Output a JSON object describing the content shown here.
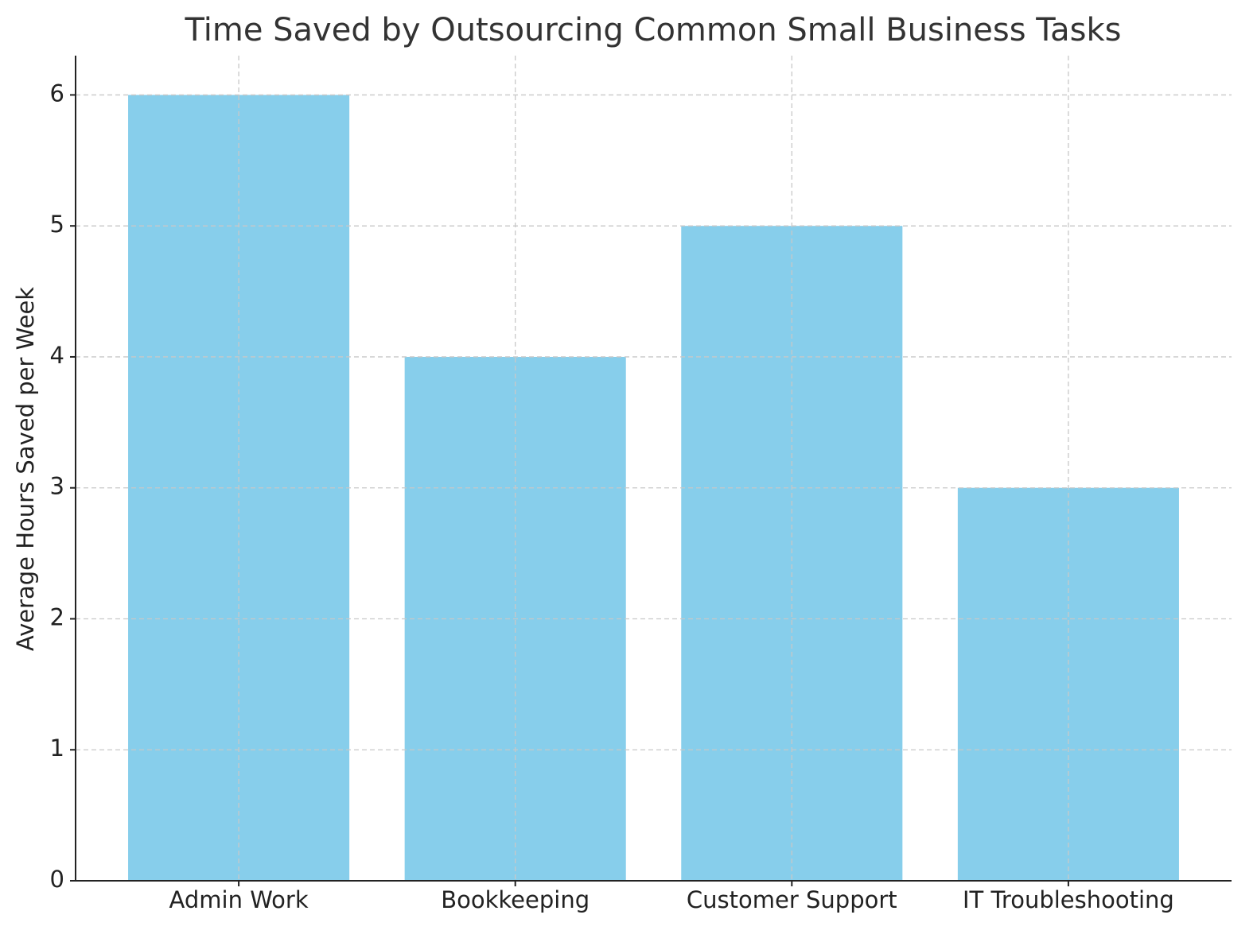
{
  "chart_data": {
    "type": "bar",
    "title": "Time Saved by Outsourcing Common Small Business Tasks",
    "y_label": "Average Hours Saved per Week",
    "categories": [
      "Admin Work",
      "Bookkeeping",
      "Customer Support",
      "IT Troubleshooting"
    ],
    "values": [
      6,
      4,
      5,
      3
    ],
    "color": "#87ceeb",
    "ylim": [
      0,
      6.3
    ],
    "yticks": [
      0,
      1,
      2,
      3,
      4,
      5,
      6
    ],
    "grid": true
  }
}
